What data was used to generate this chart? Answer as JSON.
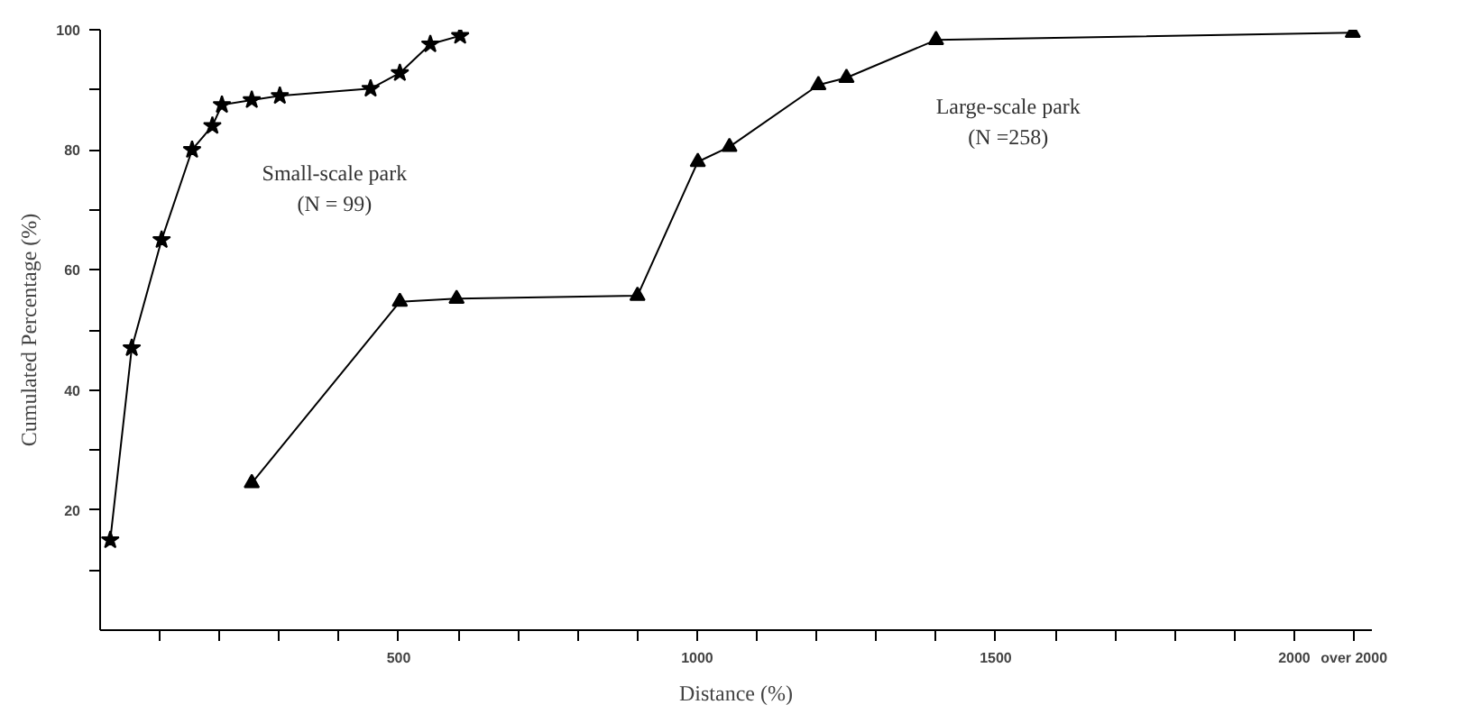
{
  "chart_data": {
    "type": "line",
    "xlabel": "Distance (%)",
    "ylabel": "Cumulated Percentage (%)",
    "xlim": [
      0,
      2130
    ],
    "ylim": [
      0,
      100
    ],
    "xticks": [
      {
        "value": 100,
        "label": null
      },
      {
        "value": 200,
        "label": null
      },
      {
        "value": 300,
        "label": null
      },
      {
        "value": 400,
        "label": null
      },
      500,
      {
        "value": 600,
        "label": null
      },
      {
        "value": 700,
        "label": null
      },
      {
        "value": 800,
        "label": null
      },
      {
        "value": 900,
        "label": null
      },
      1000,
      {
        "value": 1100,
        "label": null
      },
      {
        "value": 1200,
        "label": null
      },
      {
        "value": 1300,
        "label": null
      },
      {
        "value": 1400,
        "label": null
      },
      1500,
      {
        "value": 1600,
        "label": null
      },
      {
        "value": 1700,
        "label": null
      },
      {
        "value": 1800,
        "label": null
      },
      {
        "value": 1900,
        "label": null
      },
      2000,
      {
        "value": 2100,
        "label": "over 2000"
      }
    ],
    "yticks": [
      {
        "value": 10,
        "label": null
      },
      20,
      {
        "value": 30,
        "label": null
      },
      40,
      {
        "value": 50,
        "label": null
      },
      60,
      {
        "value": 70,
        "label": null
      },
      80,
      {
        "value": 90,
        "label": null
      },
      100
    ],
    "grid": false,
    "series": [
      {
        "name": "Small-scale park\n(N = 99)",
        "color": "#000000",
        "marker": "star",
        "x": [
          17,
          53,
          103,
          154,
          188,
          204,
          254,
          301,
          453,
          502,
          553,
          603
        ],
        "values": [
          15,
          47,
          65,
          80,
          84,
          87.5,
          88.3,
          89,
          90.2,
          92.8,
          97.6,
          99
        ]
      },
      {
        "name": "Large-scale park\n(N =258)",
        "color": "#000000",
        "marker": "triangle",
        "x": [
          254,
          502,
          597,
          900,
          1001,
          1054,
          1203,
          1250,
          1400,
          2098
        ],
        "values": [
          24.5,
          54.7,
          55.2,
          55.7,
          78,
          80.5,
          90.8,
          92,
          98.3,
          99.5
        ]
      }
    ]
  }
}
